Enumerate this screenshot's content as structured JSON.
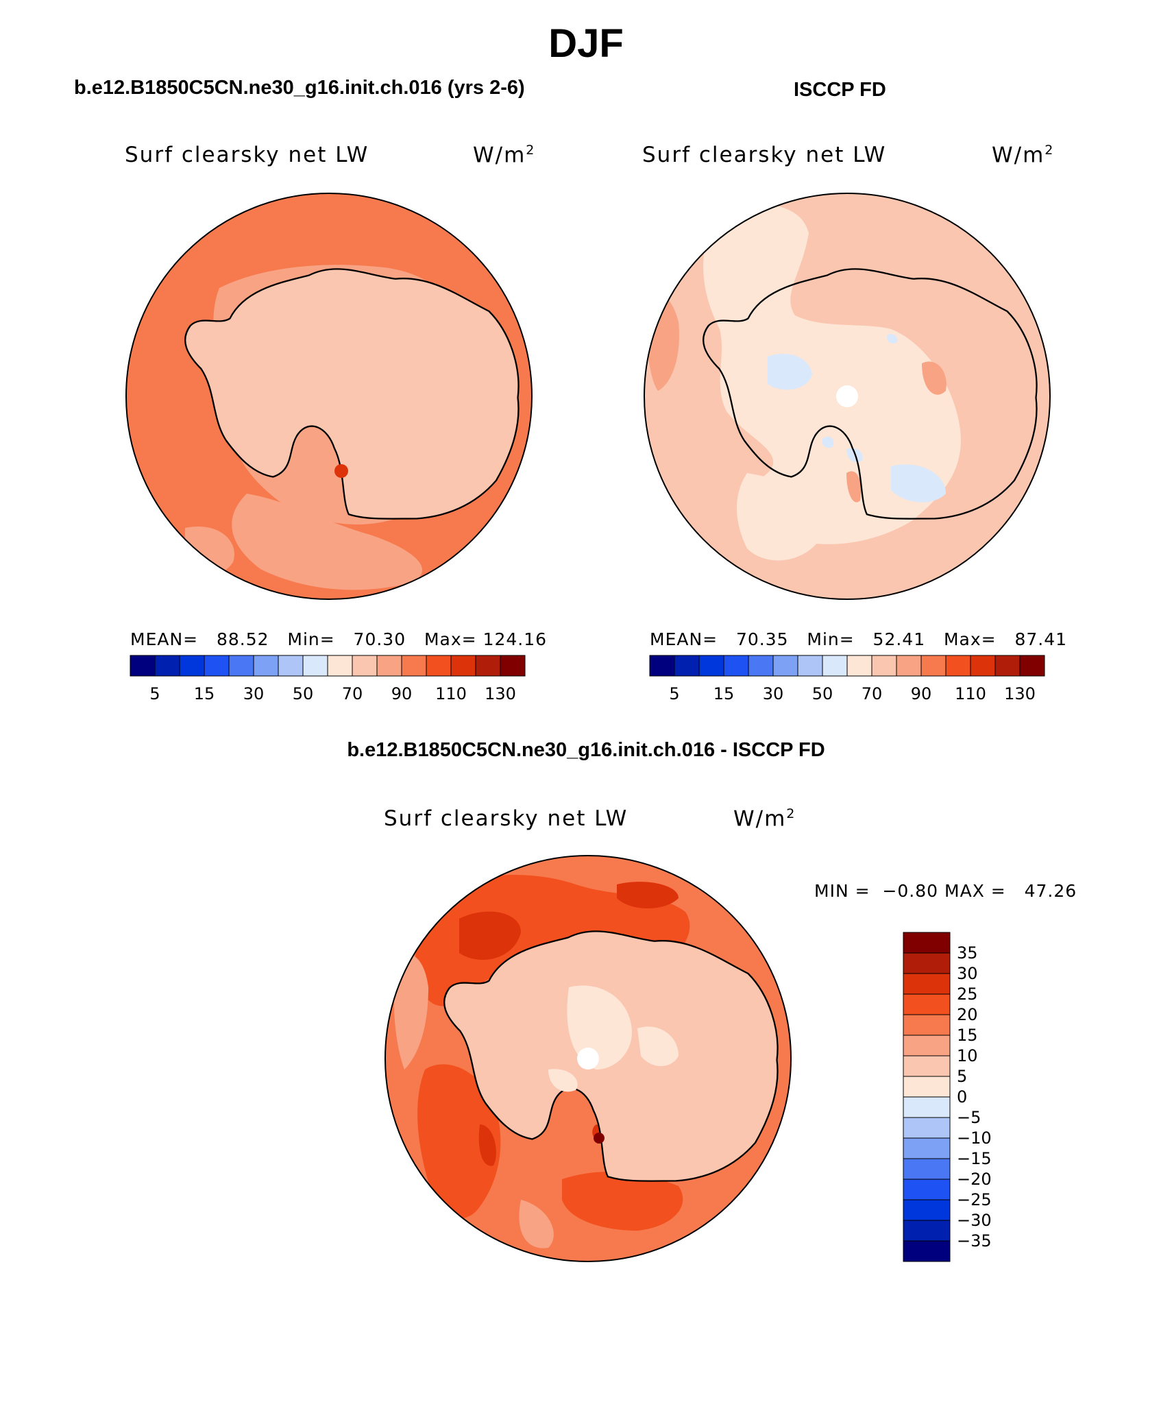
{
  "season": "DJF",
  "panels": {
    "model": {
      "heading": "b.e12.B1850C5CN.ne30_g16.init.ch.016 (yrs 2-6)",
      "variable": "Surf clearsky net LW",
      "units": "W/m",
      "units_exp": "2",
      "mean_label": "MEAN=",
      "mean_value": "88.52",
      "min_label": "Min=",
      "min_value": "70.30",
      "max_label": "Max=",
      "max_value": "124.16"
    },
    "obs": {
      "heading": "ISCCP FD",
      "variable": "Surf clearsky net LW",
      "units": "W/m",
      "units_exp": "2",
      "mean_label": "MEAN=",
      "mean_value": "70.35",
      "min_label": "Min=",
      "min_value": "52.41",
      "max_label": "Max=",
      "max_value": "87.41"
    },
    "diff": {
      "heading": "b.e12.B1850C5CN.ne30_g16.init.ch.016 - ISCCP FD",
      "variable": "Surf clearsky net LW",
      "units": "W/m",
      "units_exp": "2",
      "min_label": "MIN =",
      "min_value": "−0.80",
      "max_label": "MAX =",
      "max_value": "47.26"
    }
  },
  "abs_colorbar": {
    "colors": [
      "#00007f",
      "#0020b0",
      "#0037dd",
      "#1f52f3",
      "#4a77f4",
      "#7ca1f5",
      "#aec6f7",
      "#d9e8fa",
      "#fde6d6",
      "#fac6b0",
      "#f8a383",
      "#f67a4e",
      "#f2501e",
      "#dc330b",
      "#b01e09",
      "#800000"
    ],
    "tick_labels": [
      "5",
      "15",
      "30",
      "50",
      "70",
      "90",
      "110",
      "130"
    ]
  },
  "diff_colorbar": {
    "colors": [
      "#800000",
      "#b01e09",
      "#dc330b",
      "#f2501e",
      "#f67a4e",
      "#f8a383",
      "#fac6b0",
      "#fde6d6",
      "#d9e8fa",
      "#aec6f7",
      "#7ca1f5",
      "#4a77f4",
      "#1f52f3",
      "#0037dd",
      "#0020b0",
      "#00007f"
    ],
    "tick_labels": [
      "35",
      "30",
      "25",
      "20",
      "15",
      "10",
      "5",
      "0",
      "−5",
      "−10",
      "−15",
      "−20",
      "−25",
      "−30",
      "−35"
    ]
  },
  "map_colors": {
    "model_base": "#f67a4e",
    "model_light": "#f8a383",
    "model_ice": "#fac6b0",
    "obs_base": "#fac6b0",
    "obs_light": "#fde6d6",
    "obs_blue": "#d9e8fa",
    "obs_mid": "#f8a383",
    "diff_base": "#f67a4e",
    "diff_dark": "#f2501e",
    "diff_darker": "#dc330b",
    "diff_light": "#f8a383",
    "diff_ice": "#fac6b0",
    "diff_pale": "#fde6d6",
    "coast": "#000000"
  }
}
